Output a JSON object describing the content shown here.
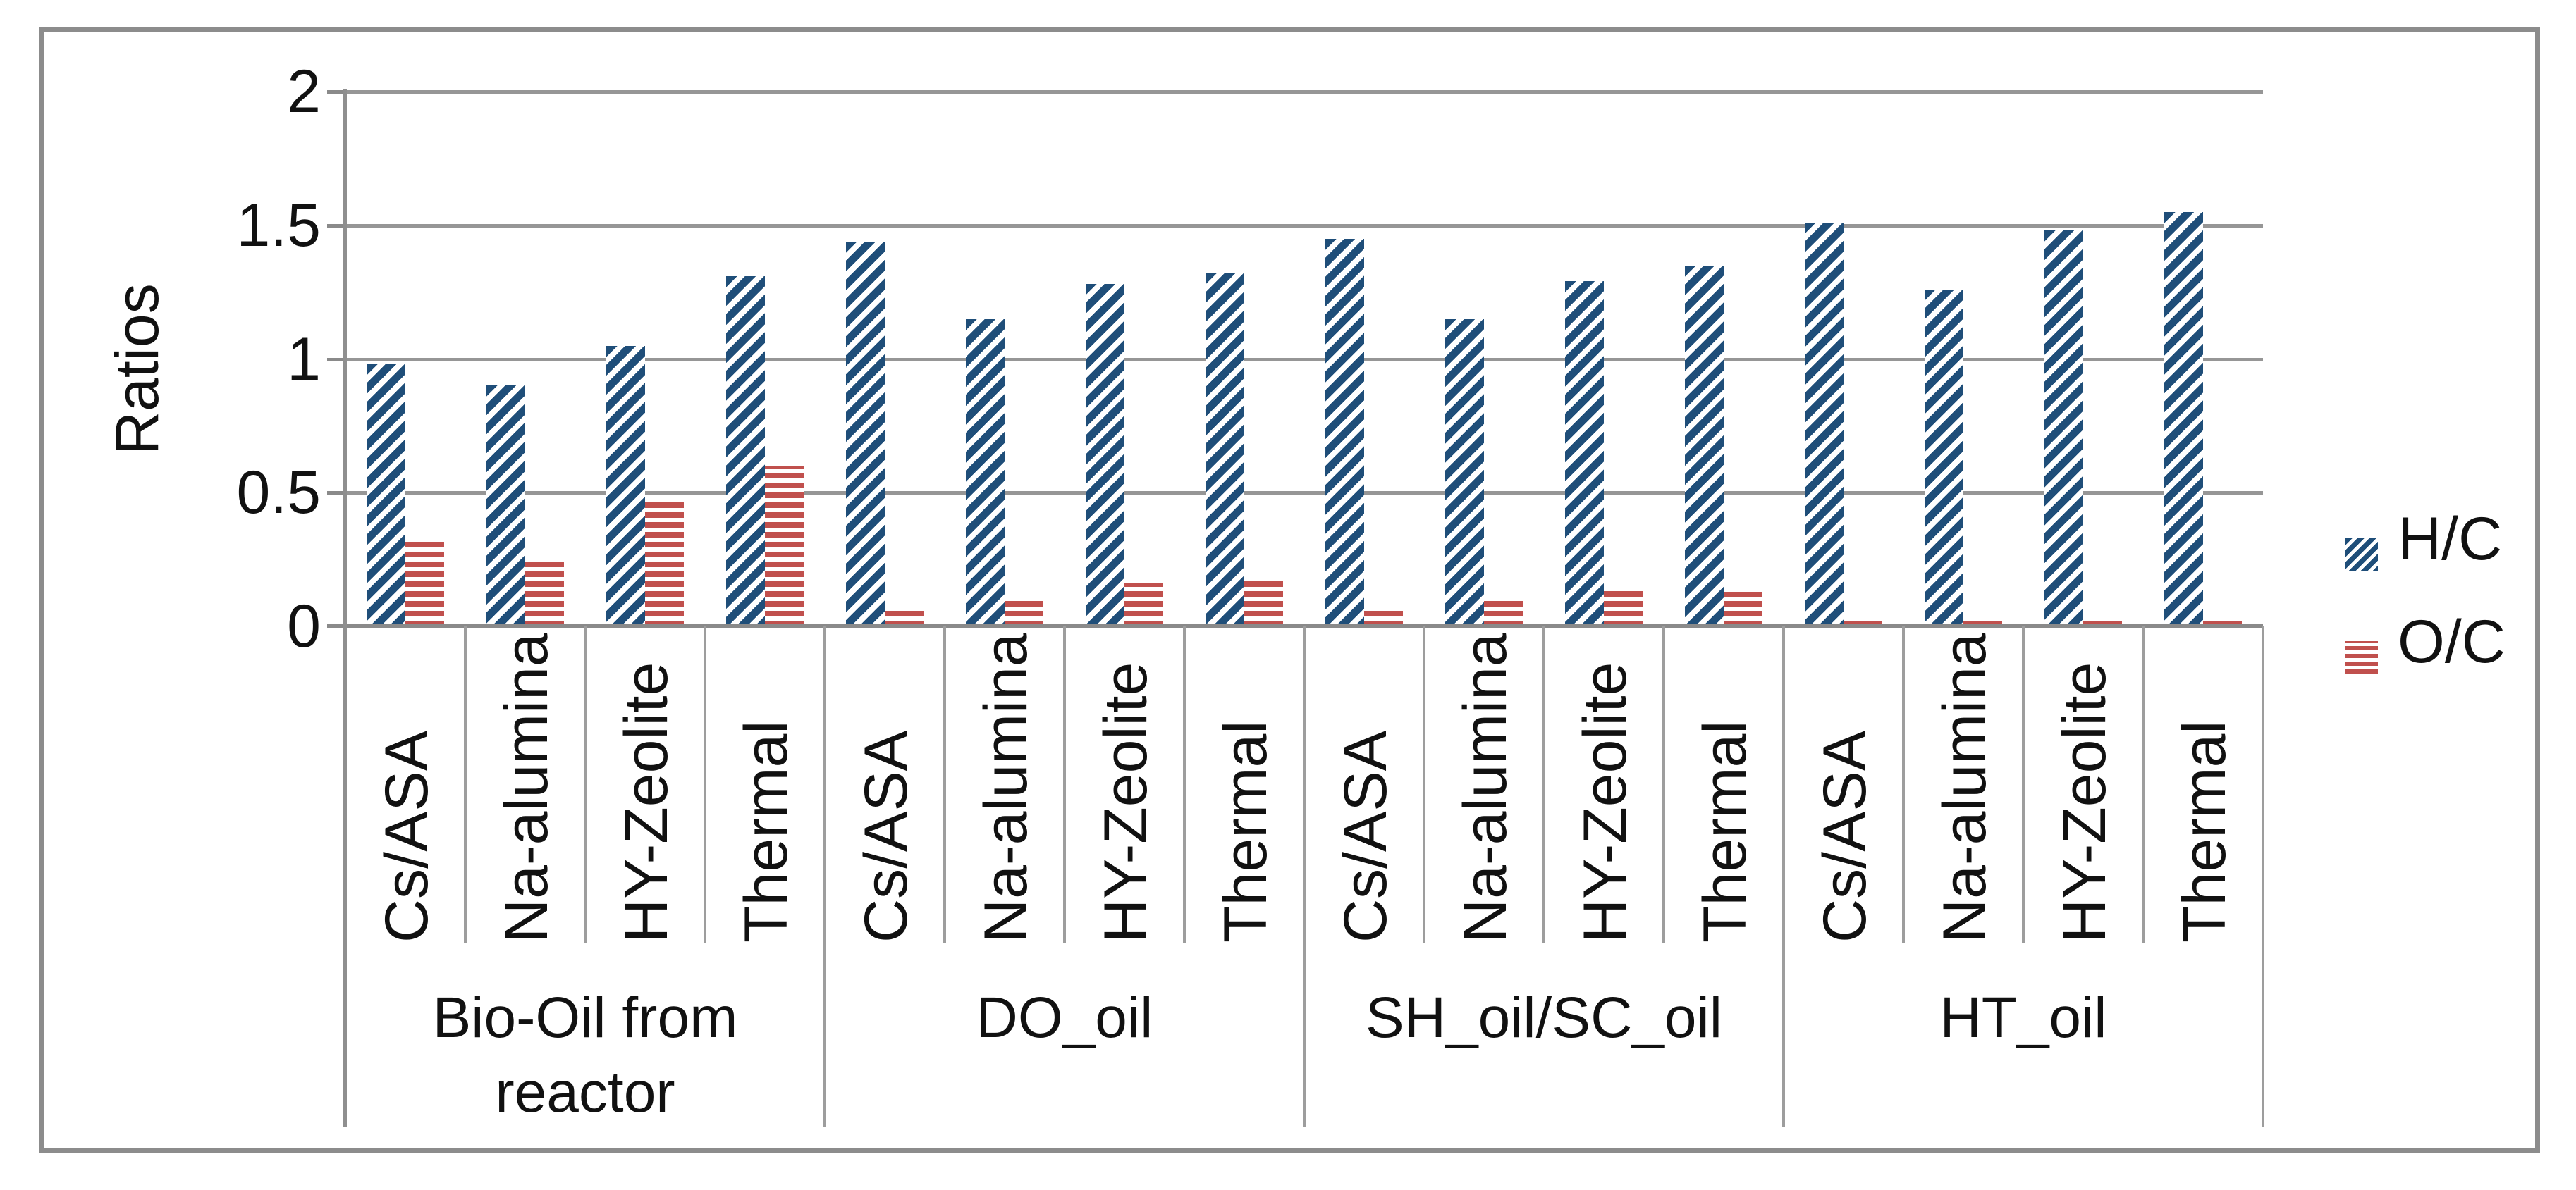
{
  "y_axis": {
    "title": "Ratios",
    "ticks": [
      {
        "label": "2",
        "value": 2
      },
      {
        "label": "1.5",
        "value": 1.5
      },
      {
        "label": "1",
        "value": 1
      },
      {
        "label": "0.5",
        "value": 0.5
      },
      {
        "label": "0",
        "value": 0
      }
    ]
  },
  "legend": {
    "items": [
      {
        "label": "H/C",
        "pattern": "diagonal",
        "color": "#1F4E79"
      },
      {
        "label": "O/C",
        "pattern": "horizontal",
        "color": "#C0504D"
      }
    ]
  },
  "chart_data": {
    "type": "bar",
    "title": "",
    "xlabel": "",
    "ylabel": "Ratios",
    "ylim": [
      0,
      2
    ],
    "yticks": [
      0,
      0.5,
      1,
      1.5,
      2
    ],
    "grid": true,
    "legend_position": "right",
    "groups": [
      "Bio-Oil from reactor",
      "DO_oil",
      "SH_oil/SC_oil",
      "HT_oil"
    ],
    "categories": [
      "Cs/ASA",
      "Na-alumina",
      "HY-Zeolite",
      "Thermal",
      "Cs/ASA",
      "Na-alumina",
      "HY-Zeolite",
      "Thermal",
      "Cs/ASA",
      "Na-alumina",
      "HY-Zeolite",
      "Thermal",
      "Cs/ASA",
      "Na-alumina",
      "HY-Zeolite",
      "Thermal"
    ],
    "series": [
      {
        "name": "H/C",
        "color": "#1F4E79",
        "hatch": "diagonal",
        "values": [
          0.98,
          0.9,
          1.05,
          1.31,
          1.44,
          1.15,
          1.28,
          1.32,
          1.45,
          1.15,
          1.29,
          1.35,
          1.51,
          1.26,
          1.48,
          1.55
        ]
      },
      {
        "name": "O/C",
        "color": "#C0504D",
        "hatch": "horizontal",
        "values": [
          0.33,
          0.26,
          0.47,
          0.6,
          0.07,
          0.1,
          0.16,
          0.17,
          0.07,
          0.1,
          0.14,
          0.13,
          0.03,
          0.03,
          0.03,
          0.04
        ]
      }
    ]
  }
}
